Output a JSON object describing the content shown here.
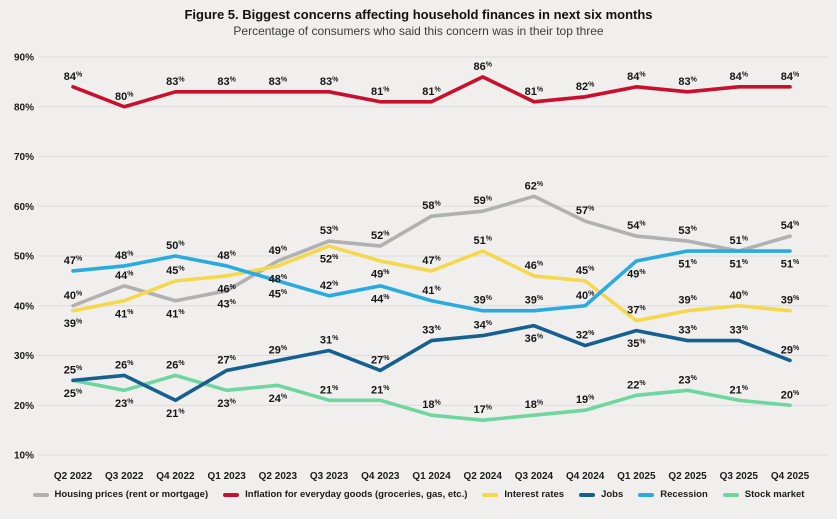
{
  "title": "Figure 5. Biggest concerns affecting household finances in next six months",
  "subtitle": "Percentage of consumers who said this concern was in their top three",
  "y_axis": {
    "ticks": [
      "90%",
      "80%",
      "70%",
      "60%",
      "50%",
      "40%",
      "30%",
      "20%",
      "10%"
    ]
  },
  "chart_data": {
    "type": "line",
    "title": "Figure 5. Biggest concerns affecting household finances in next six months",
    "subtitle": "Percentage of consumers who said this concern was in their top three",
    "unit": "%",
    "ylim": [
      10,
      90
    ],
    "y_tick_step": 10,
    "grid": true,
    "legend_position": "bottom",
    "categories": [
      "Q2 2022",
      "Q3 2022",
      "Q4 2022",
      "Q1 2023",
      "Q2 2023",
      "Q3 2023",
      "Q4 2023",
      "Q1 2024",
      "Q2 2024",
      "Q3 2024",
      "Q4 2024",
      "Q1 2025",
      "Q2 2025",
      "Q3 2025",
      "Q4 2025"
    ],
    "series": [
      {
        "name": "Housing prices (rent or mortgage)",
        "slug": "housing-prices",
        "color": "#b1b1b1",
        "values": [
          40,
          44,
          41,
          43,
          49,
          53,
          52,
          58,
          59,
          62,
          57,
          54,
          53,
          51,
          54
        ],
        "label_side": [
          "a",
          "a",
          "b",
          "b",
          "a",
          "a",
          "a",
          "a",
          "a",
          "a",
          "a",
          "a",
          "a",
          "a",
          "a"
        ]
      },
      {
        "name": "Inflation for everyday goods (groceries, gas, etc.)",
        "slug": "inflation",
        "color": "#c8102e",
        "values": [
          84,
          80,
          83,
          83,
          83,
          83,
          81,
          81,
          86,
          81,
          82,
          84,
          83,
          84,
          84
        ],
        "label_side": [
          "a",
          "a",
          "a",
          "a",
          "a",
          "a",
          "a",
          "a",
          "a",
          "a",
          "a",
          "a",
          "a",
          "a",
          "a"
        ]
      },
      {
        "name": "Interest rates",
        "slug": "interest-rates",
        "color": "#f5d84c",
        "values": [
          39,
          41,
          45,
          46,
          48,
          52,
          49,
          47,
          51,
          46,
          45,
          37,
          39,
          40,
          39
        ],
        "label_side": [
          "b",
          "b",
          "a",
          "b",
          "b",
          "b",
          "b",
          "a",
          "a",
          "a",
          "a",
          "a",
          "a",
          "a",
          "a"
        ]
      },
      {
        "name": "Jobs",
        "slug": "jobs",
        "color": "#156090",
        "values": [
          25,
          26,
          21,
          27,
          29,
          31,
          27,
          33,
          34,
          36,
          32,
          35,
          33,
          33,
          29
        ],
        "label_side": [
          "a",
          "a",
          "b",
          "a",
          "a",
          "a",
          "a",
          "a",
          "a",
          "b",
          "a",
          "b",
          "a",
          "a",
          "a"
        ]
      },
      {
        "name": "Recession",
        "slug": "recession",
        "color": "#29aae1",
        "values": [
          47,
          48,
          50,
          48,
          45,
          42,
          44,
          41,
          39,
          39,
          40,
          49,
          51,
          51,
          51
        ],
        "label_side": [
          "a",
          "a",
          "a",
          "a",
          "b",
          "a",
          "b",
          "a",
          "a",
          "a",
          "a",
          "b",
          "b",
          "b",
          "b"
        ]
      },
      {
        "name": "Stock market",
        "slug": "stock-market",
        "color": "#6fd69f",
        "values": [
          25,
          23,
          26,
          23,
          24,
          21,
          21,
          18,
          17,
          18,
          19,
          22,
          23,
          21,
          20
        ],
        "label_side": [
          "b",
          "b",
          "a",
          "b",
          "b",
          "a",
          "a",
          "a",
          "a",
          "a",
          "a",
          "a",
          "a",
          "a",
          "a"
        ]
      }
    ],
    "draw_order": [
      0,
      2,
      5,
      3,
      4,
      1
    ]
  }
}
